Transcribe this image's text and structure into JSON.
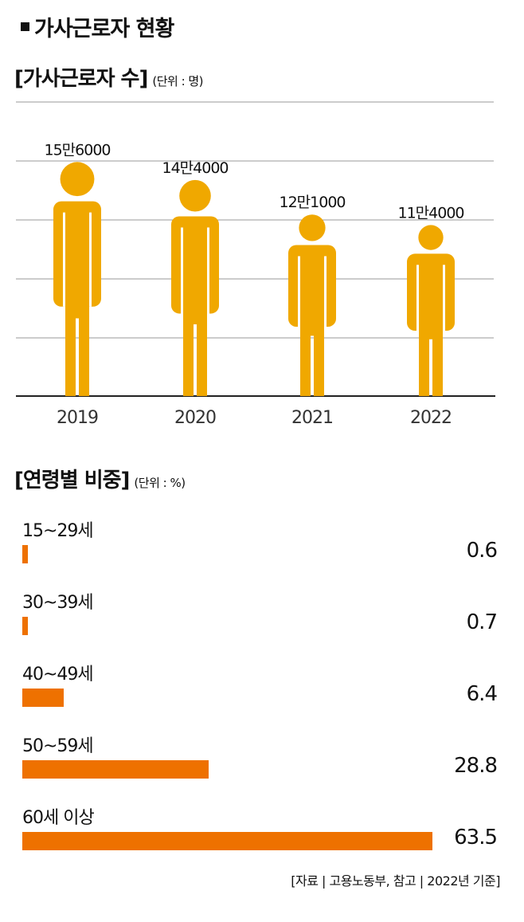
{
  "header": {
    "title": "가사근로자 현황"
  },
  "chart_data": [
    {
      "type": "bar",
      "style": "pictogram-person",
      "title_bracketed": "[가사근로자 수]",
      "unit": "(단위 : 명)",
      "categories": [
        "2019",
        "2020",
        "2021",
        "2022"
      ],
      "values": [
        156000,
        144000,
        121000,
        114000
      ],
      "data_labels": [
        "15만6000",
        "14만4000",
        "12만1000",
        "11만4000"
      ],
      "ylim": [
        0,
        196000
      ],
      "grid": true,
      "color": "#f0a800"
    },
    {
      "type": "bar",
      "orientation": "horizontal",
      "title_bracketed": "[연령별 비중]",
      "unit": "(단위 : %)",
      "categories": [
        "15~29세",
        "30~39세",
        "40~49세",
        "50~59세",
        "60세 이상"
      ],
      "values": [
        0.6,
        0.7,
        6.4,
        28.8,
        63.5
      ],
      "value_labels": [
        "0.6",
        "0.7",
        "6.4",
        "28.8",
        "63.5"
      ],
      "xlim": [
        0,
        63.5
      ],
      "color": "#ee7100"
    }
  ],
  "footer": {
    "source": "[자료 | 고용노동부, 참고 | 2022년 기준]"
  }
}
